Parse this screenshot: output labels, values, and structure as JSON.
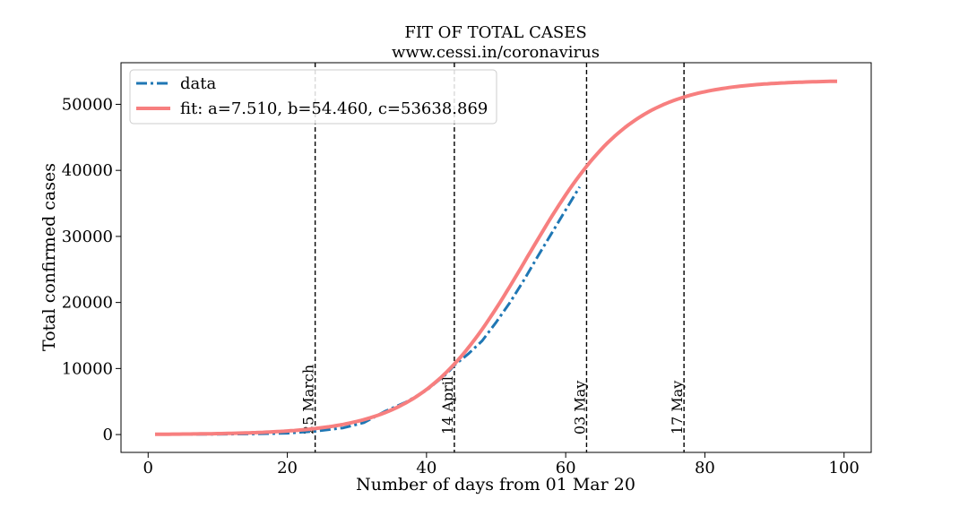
{
  "chart_data": {
    "type": "line",
    "title": "FIT OF TOTAL CASES",
    "subtitle": "www.cessi.in/coronavirus",
    "xlabel": "Number of days from 01 Mar 20",
    "ylabel": "Total confirmed cases",
    "xlim": [
      -3.9,
      103.9
    ],
    "ylim": [
      -2700,
      56300
    ],
    "x_ticks": [
      0,
      20,
      40,
      60,
      80,
      100
    ],
    "y_ticks": [
      0,
      10000,
      20000,
      30000,
      40000,
      50000
    ],
    "grid": false,
    "legend_position": "upper-left",
    "series": [
      {
        "name": "data",
        "style": "dash-dot",
        "color": "#1f77b4",
        "x": [
          1,
          5,
          10,
          15,
          20,
          24,
          28,
          31,
          34,
          37,
          40,
          43,
          44,
          46,
          48,
          50,
          52,
          54,
          56,
          58,
          60,
          62
        ],
        "y": [
          10,
          30,
          50,
          90,
          200,
          500,
          1000,
          1800,
          3500,
          4900,
          6700,
          9300,
          10500,
          12200,
          14200,
          17000,
          20000,
          23400,
          27000,
          30500,
          34000,
          37500
        ]
      },
      {
        "name": "fit: a=7.510, b=54.460, c=53638.869",
        "style": "solid",
        "color": "#f77f7f",
        "params": {
          "a": 7.51,
          "b": 54.46,
          "c": 53638.869
        },
        "x_range": [
          1,
          99
        ]
      }
    ],
    "annotations": [
      {
        "x": 24,
        "label": "25 March"
      },
      {
        "x": 44,
        "label": "14 April"
      },
      {
        "x": 63,
        "label": "03 May"
      },
      {
        "x": 77,
        "label": "17 May"
      }
    ]
  }
}
